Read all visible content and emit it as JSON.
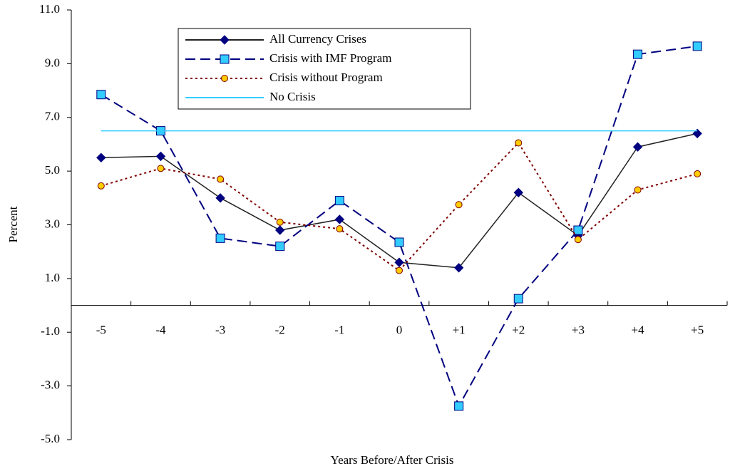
{
  "chart_data": {
    "type": "line",
    "x_label": "Years Before/After Crisis",
    "y_label": "Percent",
    "categories": [
      "-5",
      "-4",
      "-3",
      "-2",
      "-1",
      "0",
      "+1",
      "+2",
      "+3",
      "+4",
      "+5"
    ],
    "ylim": [
      -5,
      11
    ],
    "yticks": [
      {
        "value": -5,
        "label": "-5.0"
      },
      {
        "value": -3,
        "label": "-3.0"
      },
      {
        "value": -1,
        "label": "-1.0"
      },
      {
        "value": 1,
        "label": "1.0"
      },
      {
        "value": 3,
        "label": "3.0"
      },
      {
        "value": 5,
        "label": "5.0"
      },
      {
        "value": 7,
        "label": "7.0"
      },
      {
        "value": 9,
        "label": "9.0"
      },
      {
        "value": 11,
        "label": "11.0"
      }
    ],
    "legend": "upper left",
    "series": [
      {
        "name": "All Currency Crises",
        "color": "#222222",
        "marker_color": "#000080",
        "marker": "diamond",
        "dash": "solid",
        "values": [
          5.5,
          5.55,
          4.0,
          2.8,
          3.2,
          1.6,
          1.4,
          4.2,
          2.6,
          5.9,
          6.4
        ]
      },
      {
        "name": "Crisis with IMF Program",
        "color": "#000080",
        "marker_color": "#33ccff",
        "marker": "square",
        "dash": "dashed",
        "values": [
          7.85,
          6.5,
          2.5,
          2.2,
          3.9,
          2.35,
          -3.75,
          0.25,
          2.8,
          9.35,
          9.65
        ]
      },
      {
        "name": "Crisis without Program",
        "color": "#800000",
        "marker_color": "#ffcc00",
        "marker": "circle",
        "dash": "dotted",
        "values": [
          4.45,
          5.1,
          4.7,
          3.1,
          2.85,
          1.3,
          3.75,
          6.05,
          2.45,
          4.3,
          4.9
        ]
      },
      {
        "name": "No Crisis",
        "color": "#33ccff",
        "marker": "none",
        "dash": "solid",
        "values": [
          6.5,
          6.5,
          6.5,
          6.5,
          6.5,
          6.5,
          6.5,
          6.5,
          6.5,
          6.5,
          6.5
        ]
      }
    ]
  }
}
